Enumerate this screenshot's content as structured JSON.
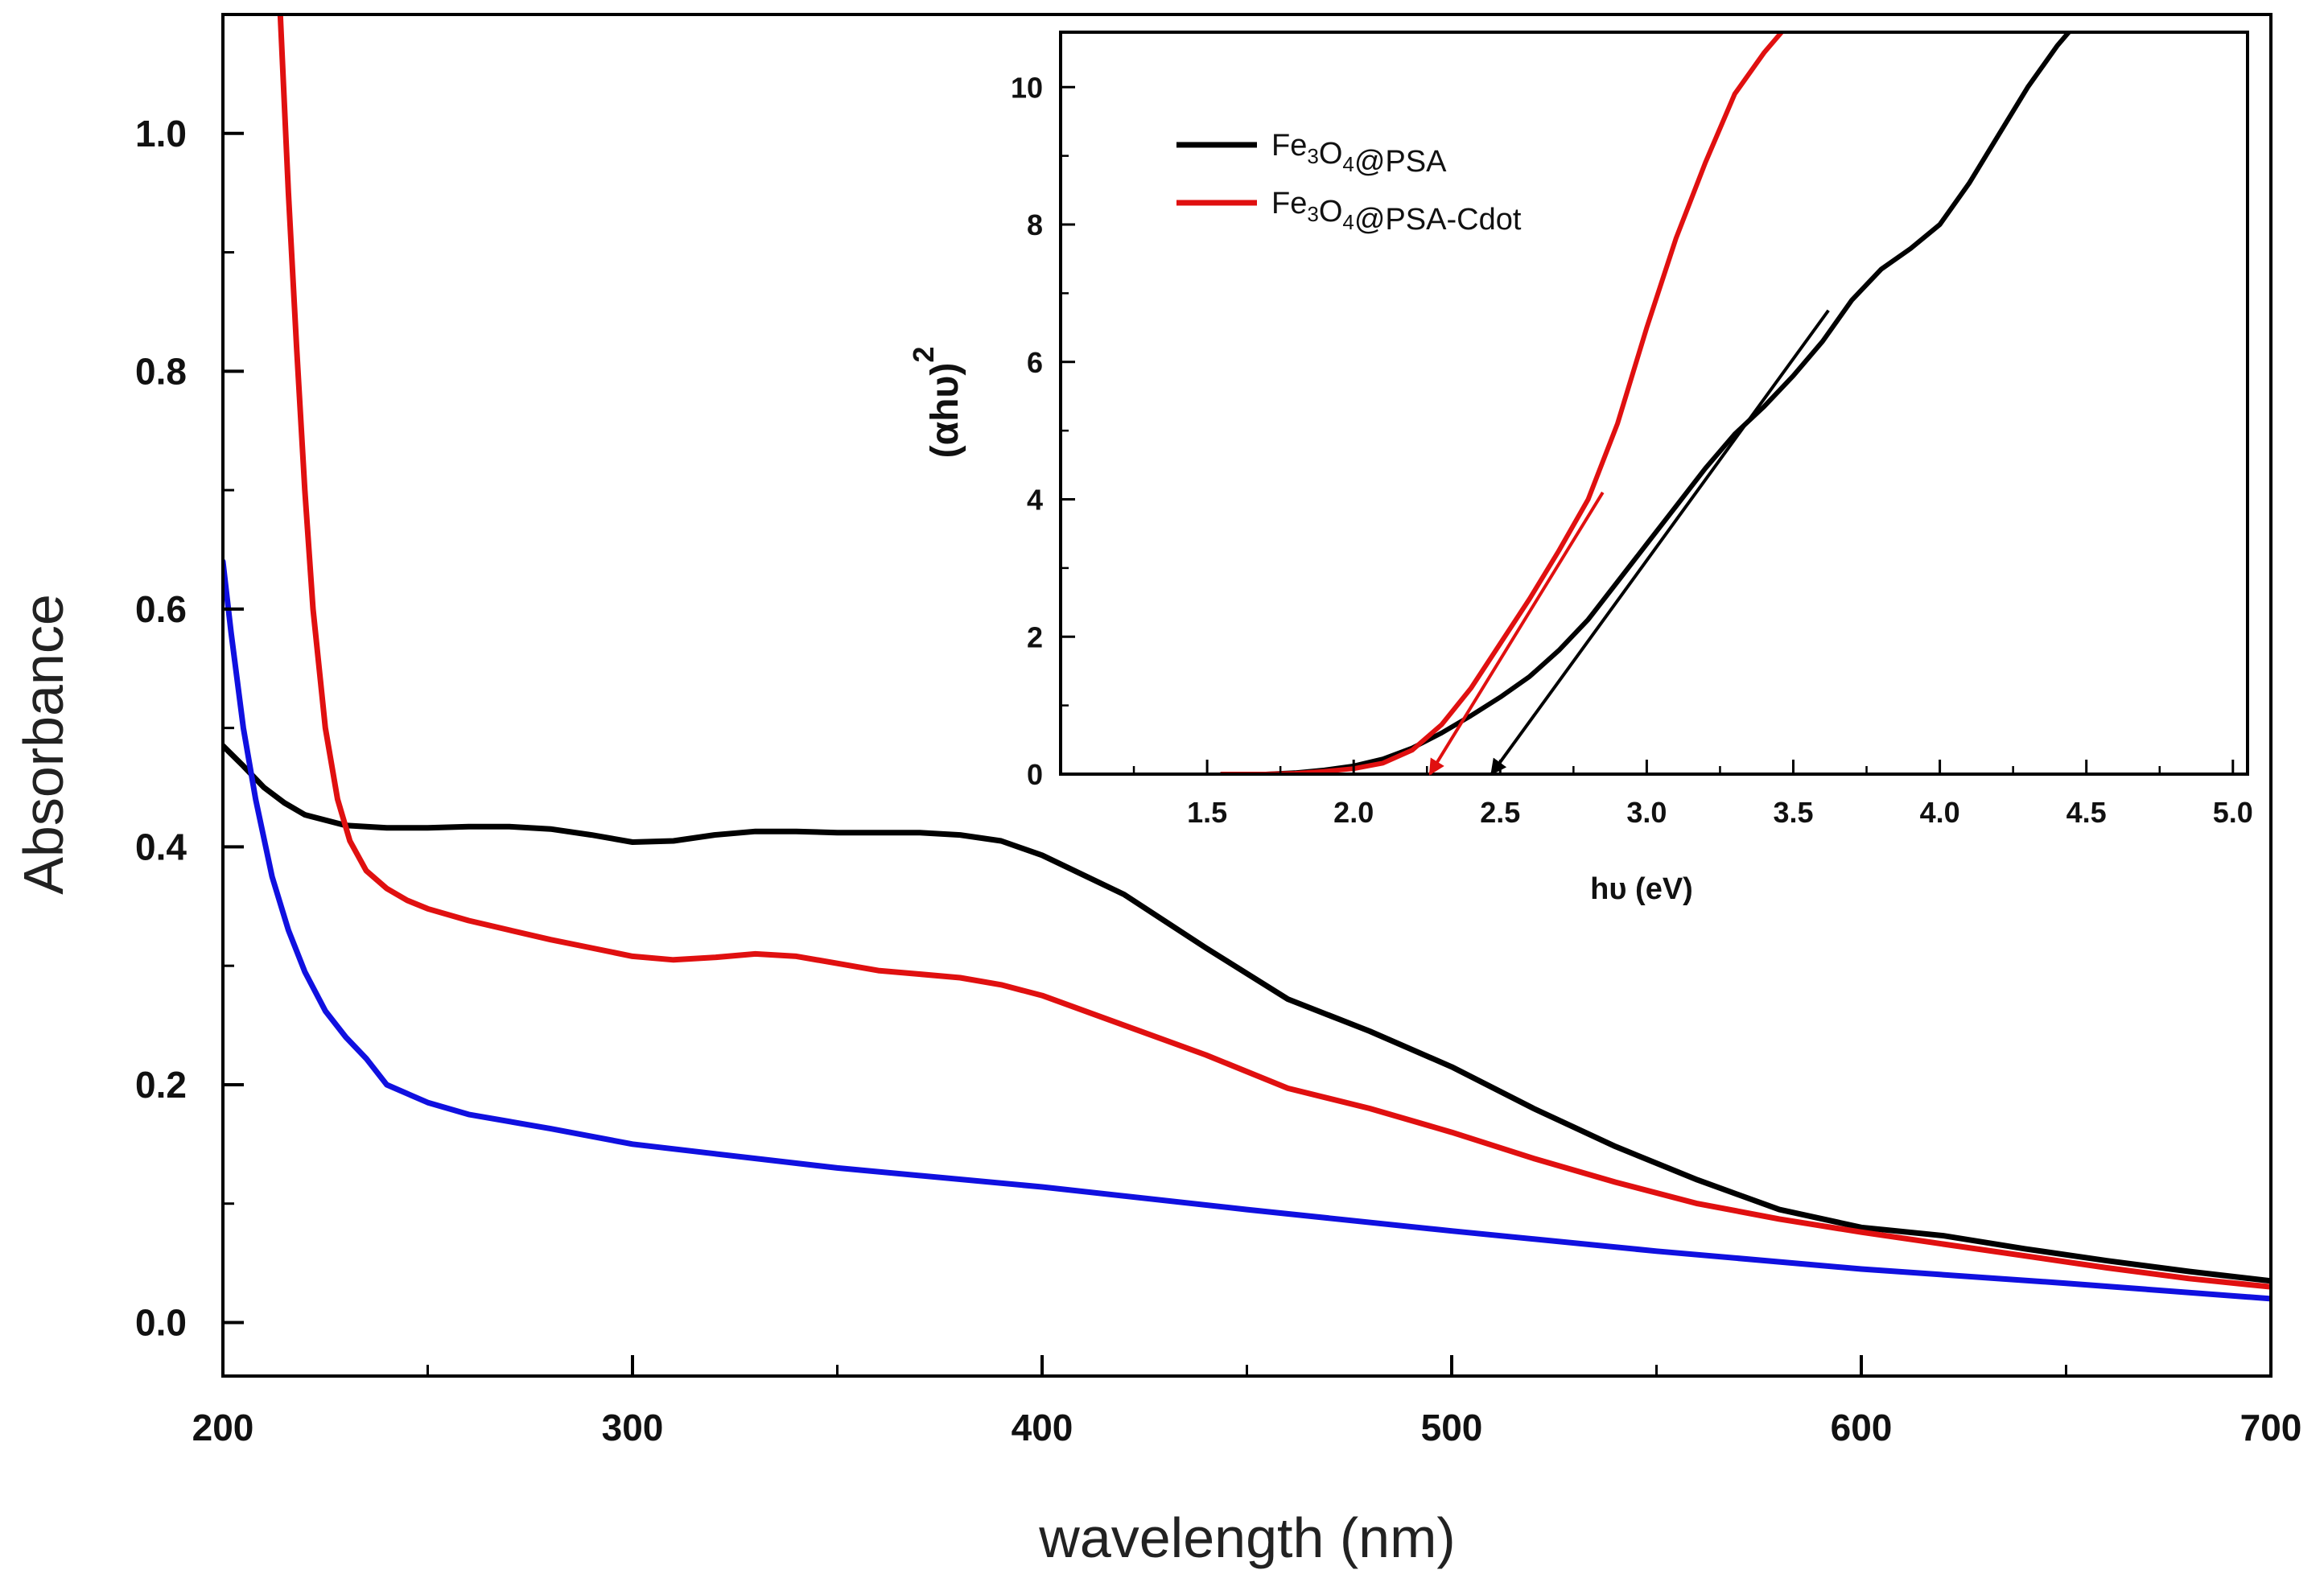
{
  "chart_data": [
    {
      "type": "line",
      "title": "",
      "xlabel": "wavelength (nm)",
      "ylabel": "Absorbance",
      "xlim": [
        200,
        700
      ],
      "ylim": [
        -0.045,
        1.1
      ],
      "x_ticks": [
        200,
        300,
        400,
        500,
        600,
        700
      ],
      "x_tick_labels": [
        "200",
        "300",
        "400",
        "500",
        "600",
        "700"
      ],
      "y_ticks": [
        0.0,
        0.2,
        0.4,
        0.6,
        0.8,
        1.0
      ],
      "y_tick_labels": [
        "0.0",
        "0.2",
        "0.4",
        "0.6",
        "0.8",
        "1.0"
      ],
      "grid": false,
      "series": [
        {
          "name": "",
          "color": "#000000",
          "x": [
            200,
            205,
            210,
            215,
            220,
            230,
            240,
            250,
            260,
            270,
            280,
            290,
            300,
            310,
            320,
            330,
            340,
            350,
            360,
            370,
            380,
            390,
            400,
            420,
            440,
            460,
            480,
            500,
            520,
            540,
            560,
            580,
            600,
            620,
            640,
            660,
            680,
            700
          ],
          "y": [
            0.485,
            0.468,
            0.45,
            0.437,
            0.427,
            0.418,
            0.416,
            0.416,
            0.417,
            0.417,
            0.415,
            0.41,
            0.404,
            0.405,
            0.41,
            0.413,
            0.413,
            0.412,
            0.412,
            0.412,
            0.41,
            0.405,
            0.393,
            0.36,
            0.315,
            0.272,
            0.245,
            0.215,
            0.18,
            0.148,
            0.12,
            0.095,
            0.08,
            0.073,
            0.062,
            0.052,
            0.043,
            0.035
          ]
        },
        {
          "name": "",
          "color": "#e01010",
          "x": [
            214,
            216,
            218,
            220,
            222,
            225,
            228,
            231,
            235,
            240,
            245,
            250,
            260,
            270,
            280,
            290,
            300,
            310,
            320,
            330,
            340,
            350,
            360,
            370,
            380,
            390,
            400,
            420,
            440,
            460,
            480,
            500,
            520,
            540,
            560,
            580,
            600,
            620,
            640,
            660,
            680,
            700
          ],
          "y": [
            1.1,
            0.95,
            0.82,
            0.7,
            0.6,
            0.5,
            0.44,
            0.405,
            0.38,
            0.365,
            0.355,
            0.348,
            0.338,
            0.33,
            0.322,
            0.315,
            0.308,
            0.305,
            0.307,
            0.31,
            0.308,
            0.302,
            0.296,
            0.293,
            0.29,
            0.284,
            0.275,
            0.25,
            0.225,
            0.197,
            0.18,
            0.16,
            0.138,
            0.118,
            0.1,
            0.087,
            0.076,
            0.066,
            0.056,
            0.046,
            0.037,
            0.03
          ]
        },
        {
          "name": "",
          "color": "#1010e0",
          "x": [
            200,
            202,
            205,
            208,
            212,
            216,
            220,
            225,
            230,
            235,
            240,
            250,
            260,
            280,
            300,
            320,
            350,
            400,
            450,
            500,
            550,
            600,
            650,
            700
          ],
          "y": [
            0.64,
            0.58,
            0.5,
            0.44,
            0.375,
            0.33,
            0.295,
            0.262,
            0.24,
            0.222,
            0.2,
            0.185,
            0.175,
            0.163,
            0.15,
            0.142,
            0.13,
            0.114,
            0.095,
            0.077,
            0.06,
            0.045,
            0.033,
            0.02
          ]
        }
      ]
    },
    {
      "type": "line",
      "title": "",
      "xlabel": "hυ (eV)",
      "ylabel": "(αhυ)",
      "ylabel_superscript": "2",
      "xlim": [
        1.0,
        5.05
      ],
      "ylim": [
        0,
        10.8
      ],
      "x_ticks": [
        1.5,
        2.0,
        2.5,
        3.0,
        3.5,
        4.0,
        4.5,
        5.0
      ],
      "x_tick_labels": [
        "1.5",
        "2.0",
        "2.5",
        "3.0",
        "3.5",
        "4.0",
        "4.5",
        "5.0"
      ],
      "y_ticks": [
        0,
        2,
        4,
        6,
        8,
        10
      ],
      "y_tick_labels": [
        "0",
        "2",
        "4",
        "6",
        "8",
        "10"
      ],
      "grid": false,
      "legend_position": "top-left",
      "series": [
        {
          "name": "Fe3O4@PSA",
          "legend_parts": [
            {
              "t": "Fe",
              "sub": false
            },
            {
              "t": "3",
              "sub": true
            },
            {
              "t": "O",
              "sub": false
            },
            {
              "t": "4",
              "sub": true
            },
            {
              "t": "@PSA",
              "sub": false
            }
          ],
          "color": "#000000",
          "x": [
            1.55,
            1.7,
            1.8,
            1.9,
            2.0,
            2.1,
            2.2,
            2.3,
            2.4,
            2.5,
            2.6,
            2.7,
            2.8,
            2.9,
            3.0,
            3.1,
            3.2,
            3.3,
            3.4,
            3.5,
            3.6,
            3.7,
            3.8,
            3.9,
            4.0,
            4.1,
            4.2,
            4.3,
            4.4,
            4.45
          ],
          "y": [
            0,
            0,
            0.02,
            0.06,
            0.12,
            0.22,
            0.38,
            0.6,
            0.85,
            1.12,
            1.42,
            1.8,
            2.25,
            2.8,
            3.35,
            3.9,
            4.45,
            4.95,
            5.35,
            5.8,
            6.3,
            6.9,
            7.35,
            7.65,
            8.0,
            8.6,
            9.3,
            10.0,
            10.6,
            10.85
          ]
        },
        {
          "name": "Fe3O4@PSA-Cdot",
          "legend_parts": [
            {
              "t": "Fe",
              "sub": false
            },
            {
              "t": "3",
              "sub": true
            },
            {
              "t": "O",
              "sub": false
            },
            {
              "t": "4",
              "sub": true
            },
            {
              "t": "@PSA-Cdot",
              "sub": false
            }
          ],
          "color": "#e01010",
          "x": [
            1.55,
            1.7,
            1.8,
            1.9,
            2.0,
            2.1,
            2.2,
            2.3,
            2.4,
            2.5,
            2.6,
            2.7,
            2.8,
            2.9,
            3.0,
            3.1,
            3.2,
            3.3,
            3.4,
            3.47
          ],
          "y": [
            0,
            0,
            0.01,
            0.04,
            0.08,
            0.16,
            0.35,
            0.72,
            1.25,
            1.9,
            2.55,
            3.25,
            4.0,
            5.1,
            6.5,
            7.8,
            8.9,
            9.9,
            10.5,
            10.85
          ]
        }
      ],
      "tangents": [
        {
          "color": "#000000",
          "from": [
            3.62,
            6.75
          ],
          "to": [
            2.47,
            0
          ],
          "arrow": true
        },
        {
          "color": "#e01010",
          "from": [
            2.85,
            4.1
          ],
          "to": [
            2.26,
            0
          ],
          "arrow": true
        }
      ]
    }
  ]
}
